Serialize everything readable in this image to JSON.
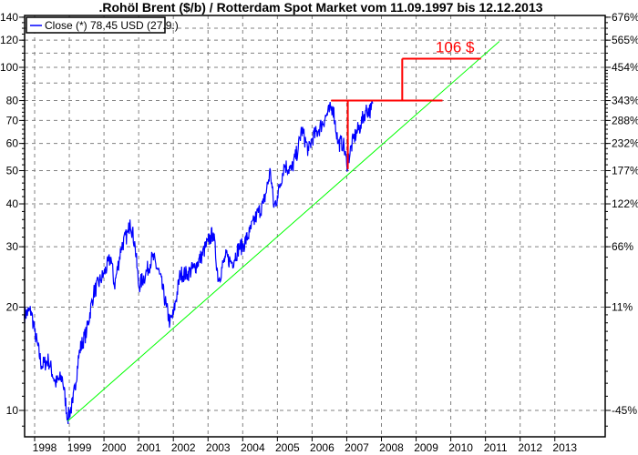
{
  "chart_data": {
    "type": "line",
    "title": ".Rohöl Brent ($/b) / Rotterdam Spot Market vom 11.09.1997 bis 12.12.2013",
    "xlabel": "",
    "ylabel": "",
    "y_scale": "log",
    "ylim": [
      8,
      140
    ],
    "xlim": [
      1997.7,
      2014.45
    ],
    "grid": true,
    "legend_position": "top-left",
    "y_ticks_left": [
      10,
      20,
      30,
      40,
      50,
      60,
      70,
      80,
      100,
      120,
      140
    ],
    "y_ticks_right": [
      {
        "value": 10,
        "label": "-45%"
      },
      {
        "value": 20,
        "label": "11%"
      },
      {
        "value": 30,
        "label": "66%"
      },
      {
        "value": 40,
        "label": "122%"
      },
      {
        "value": 50,
        "label": "177%"
      },
      {
        "value": 60,
        "label": "232%"
      },
      {
        "value": 70,
        "label": "288%"
      },
      {
        "value": 80,
        "label": "343%"
      },
      {
        "value": 100,
        "label": "454%"
      },
      {
        "value": 120,
        "label": "565%"
      },
      {
        "value": 140,
        "label": "676%"
      }
    ],
    "x_ticks": [
      "1998",
      "1999",
      "2000",
      "2001",
      "2002",
      "2003",
      "2004",
      "2005",
      "2006",
      "2007",
      "2008",
      "2009",
      "2010",
      "2011",
      "2012",
      "2013"
    ],
    "series": [
      {
        "name": "Close (*) 78,45 USD (27.9.)",
        "color": "#0000ff",
        "x": [
          1997.7,
          1997.9,
          1998.0,
          1998.2,
          1998.4,
          1998.6,
          1998.8,
          1998.95,
          1999.1,
          1999.3,
          1999.5,
          1999.7,
          1999.9,
          2000.0,
          2000.2,
          2000.3,
          2000.5,
          2000.7,
          2000.75,
          2000.9,
          2001.0,
          2001.2,
          2001.4,
          2001.6,
          2001.8,
          2001.9,
          2002.0,
          2002.2,
          2002.4,
          2002.6,
          2002.8,
          2003.0,
          2003.15,
          2003.3,
          2003.5,
          2003.7,
          2003.9,
          2004.0,
          2004.2,
          2004.4,
          2004.6,
          2004.8,
          2004.9,
          2005.0,
          2005.2,
          2005.4,
          2005.6,
          2005.7,
          2005.9,
          2006.0,
          2006.2,
          2006.4,
          2006.6,
          2006.75,
          2006.9,
          2007.0,
          2007.2,
          2007.4,
          2007.55,
          2007.7,
          2007.75
        ],
        "y": [
          19,
          19.5,
          17,
          13.5,
          14,
          12,
          12.5,
          9.5,
          10.5,
          15,
          17,
          22,
          24,
          25,
          28,
          23,
          30,
          33,
          36,
          30,
          23,
          25,
          28,
          25,
          20,
          18,
          19,
          25,
          25,
          26,
          28,
          31,
          33,
          24,
          28,
          27,
          30,
          30,
          33,
          37,
          40,
          50,
          39,
          42,
          52,
          50,
          58,
          66,
          57,
          62,
          66,
          72,
          77,
          60,
          60,
          52,
          62,
          68,
          75,
          75,
          78.45
        ]
      },
      {
        "name": "",
        "color": "#00ff00",
        "type": "trendline",
        "x": [
          1998.95,
          2011.4
        ],
        "y": [
          9.3,
          119
        ]
      }
    ],
    "annotations": [
      {
        "text": "106 $",
        "color": "#ff0000",
        "x": 2009.7,
        "y": 106
      },
      {
        "type": "line",
        "color": "#ff0000",
        "x": [
          2006.55,
          2009.76
        ],
        "y": [
          80,
          80
        ]
      },
      {
        "type": "line",
        "color": "#ff0000",
        "x": [
          2007.03,
          2007.03
        ],
        "y": [
          50.5,
          80
        ]
      },
      {
        "type": "line",
        "color": "#ff0000",
        "x": [
          2008.6,
          2008.6
        ],
        "y": [
          80,
          106
        ]
      },
      {
        "type": "line",
        "color": "#ff0000",
        "x": [
          2008.6,
          2010.87
        ],
        "y": [
          106,
          106
        ]
      }
    ]
  }
}
